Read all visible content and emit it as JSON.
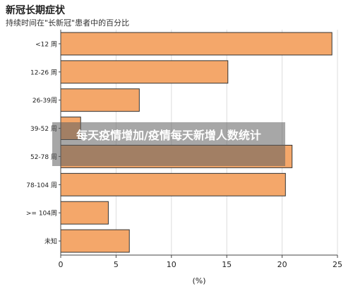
{
  "title": "新冠长期症状",
  "subtitle": "持续时间在\"长新冠\"患者中的百分比",
  "watermark": "每天疫情增加/疫情每天新增人数统计",
  "chart_data": {
    "type": "bar",
    "orientation": "horizontal",
    "categories": [
      "<12 周",
      "12-26 周",
      "26-39周",
      "39-52 周",
      "52-78 周",
      "78-104 周",
      ">= 104周",
      "未知"
    ],
    "values": [
      24.5,
      15.1,
      7.1,
      1.8,
      20.9,
      20.3,
      4.3,
      6.2
    ],
    "xlabel": "(%)",
    "xlim": [
      0,
      25
    ],
    "xticks": [
      0,
      5,
      10,
      15,
      20,
      25
    ],
    "grid": true,
    "bar_color": "#f4a76a",
    "bar_edge_color": "#333333"
  }
}
